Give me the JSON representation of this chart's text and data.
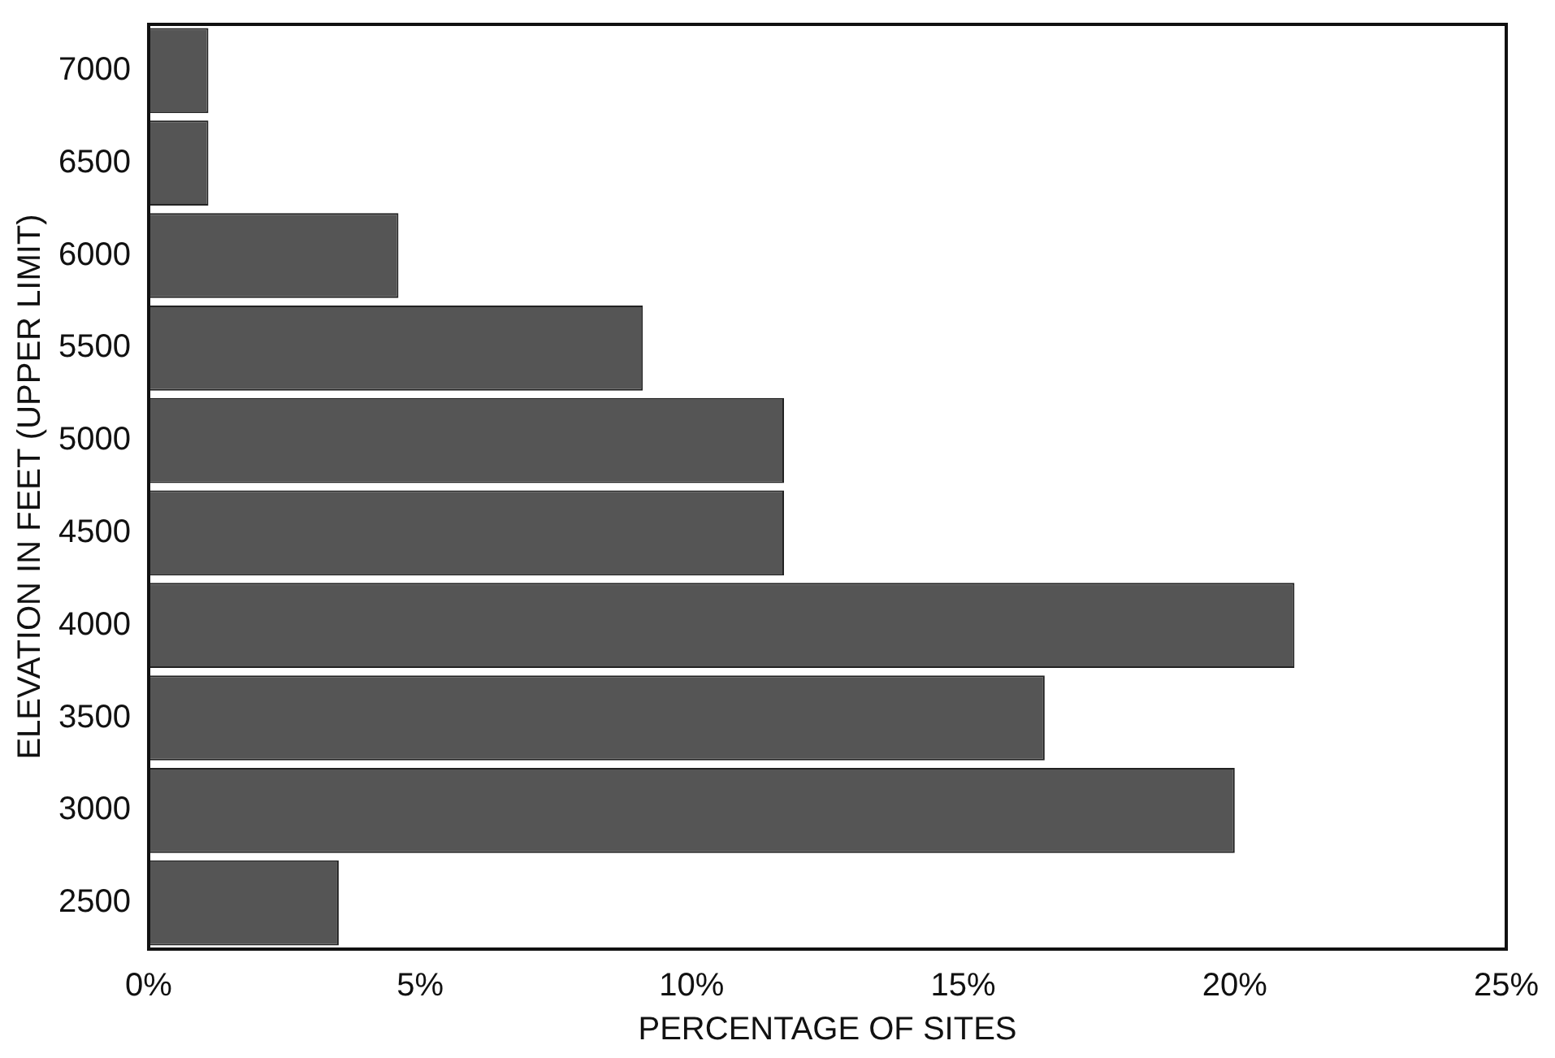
{
  "chart_data": {
    "type": "bar",
    "orientation": "horizontal",
    "xlabel": "PERCENTAGE OF SITES",
    "ylabel": "ELEVATION IN FEET (UPPER LIMIT)",
    "categories": [
      "7000",
      "6500",
      "6000",
      "5500",
      "5000",
      "4500",
      "4000",
      "3500",
      "3000",
      "2500"
    ],
    "values": [
      1.1,
      1.1,
      4.6,
      9.1,
      11.7,
      11.7,
      21.1,
      16.5,
      20.0,
      3.5
    ],
    "color": "#555555",
    "xlim": [
      0,
      25
    ],
    "xticks": [
      {
        "value": 0,
        "label": "0%"
      },
      {
        "value": 5,
        "label": "5%"
      },
      {
        "value": 10,
        "label": "10%"
      },
      {
        "value": 15,
        "label": "15%"
      },
      {
        "value": 20,
        "label": "20%"
      },
      {
        "value": 25,
        "label": "25%"
      }
    ],
    "grid": false,
    "legend": false
  }
}
